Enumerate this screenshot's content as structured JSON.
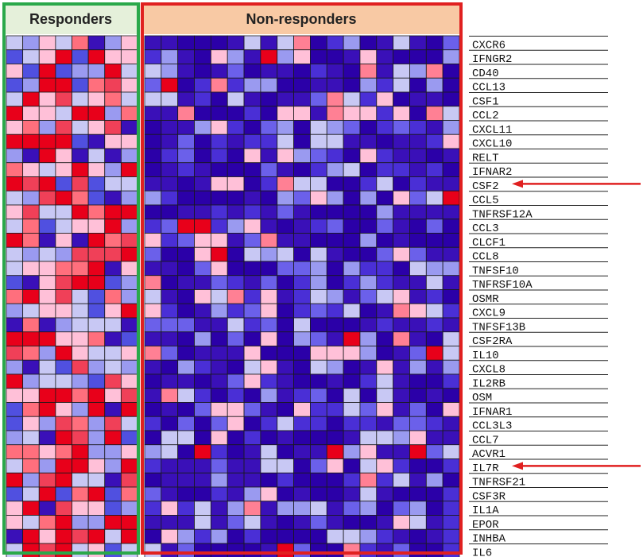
{
  "groups": {
    "responders": "Responders",
    "non_responders": "Non-responders"
  },
  "colors": {
    "responders_border": "#2aa84a",
    "responders_header": "#e5f0da",
    "non_responders_border": "#e02020",
    "non_responders_header": "#f8c9a4",
    "arrow": "#e02020",
    "low": "#2b00a8",
    "mid": "#ffffff",
    "high": "#e8001a"
  },
  "chart_data": {
    "type": "heatmap",
    "rows": [
      "CXCR6",
      "IFNGR2",
      "CD40",
      "CCL13",
      "CSF1",
      "CCL2",
      "CXCL11",
      "CXCL10",
      "RELT",
      "IFNAR2",
      "CSF2",
      "CCL5",
      "TNFRSF12A",
      "CCL3",
      "CLCF1",
      "CCL8",
      "TNFSF10",
      "TNFRSF10A",
      "OSMR",
      "CXCL9",
      "TNFSF13B",
      "CSF2RA",
      "IL10",
      "CXCL8",
      "IL2RB",
      "OSM",
      "IFNAR1",
      "CCL3L3",
      "CCL7",
      "ACVR1",
      "IL7R",
      "TNFRSF21",
      "CSF3R",
      "IL1A",
      "EPOR",
      "INHBA",
      "IL6"
    ],
    "columns": {
      "responders": 8,
      "non_responders": 19
    },
    "highlighted_rows": [
      "CSF2",
      "IL7R"
    ],
    "scale": "blue (low) - white - red (high)"
  }
}
